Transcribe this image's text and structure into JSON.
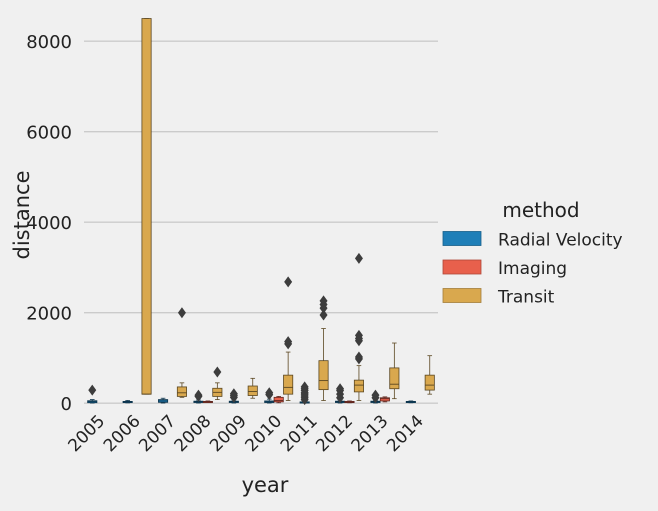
{
  "chart_data": {
    "type": "box",
    "xlabel": "year",
    "ylabel": "distance",
    "ylim": [
      -150,
      8600
    ],
    "yticks": [
      0,
      2000,
      4000,
      6000,
      8000
    ],
    "grid": "horizontal",
    "legend": {
      "title": "method",
      "placement": "right"
    },
    "categories": [
      "2005",
      "2006",
      "2007",
      "2008",
      "2009",
      "2010",
      "2011",
      "2012",
      "2013",
      "2014"
    ],
    "series": [
      {
        "name": "Radial Velocity",
        "color": "#1f7fb8",
        "boxes": [
          {
            "year": "2005",
            "whislo": 5,
            "q1": 12,
            "med": 35,
            "q3": 55,
            "whishi": 80,
            "fliers": [
              290
            ]
          },
          {
            "year": "2006",
            "whislo": 8,
            "q1": 15,
            "med": 30,
            "q3": 40,
            "whishi": 60,
            "fliers": []
          },
          {
            "year": "2007",
            "whislo": 5,
            "q1": 20,
            "med": 50,
            "q3": 80,
            "whishi": 110,
            "fliers": []
          },
          {
            "year": "2008",
            "whislo": 5,
            "q1": 15,
            "med": 30,
            "q3": 45,
            "whishi": 70,
            "fliers": [
              150,
              180
            ]
          },
          {
            "year": "2009",
            "whislo": 5,
            "q1": 15,
            "med": 30,
            "q3": 45,
            "whishi": 70,
            "fliers": [
              130,
              170,
              210
            ]
          },
          {
            "year": "2010",
            "whislo": 5,
            "q1": 15,
            "med": 30,
            "q3": 50,
            "whishi": 90,
            "fliers": [
              190,
              230
            ]
          },
          {
            "year": "2011",
            "whislo": 3,
            "q1": 10,
            "med": 20,
            "q3": 30,
            "whishi": 45,
            "fliers": [
              80,
              120,
              160,
              200,
              230,
              280,
              320,
              360
            ]
          },
          {
            "year": "2012",
            "whislo": 5,
            "q1": 15,
            "med": 30,
            "q3": 45,
            "whishi": 70,
            "fliers": [
              120,
              200,
              280,
              320
            ]
          },
          {
            "year": "2013",
            "whislo": 5,
            "q1": 15,
            "med": 30,
            "q3": 45,
            "whishi": 60,
            "fliers": [
              120,
              180
            ]
          },
          {
            "year": "2014",
            "whislo": 10,
            "q1": 20,
            "med": 30,
            "q3": 40,
            "whishi": 50,
            "fliers": []
          }
        ]
      },
      {
        "name": "Imaging",
        "color": "#e8604c",
        "boxes": [
          {
            "year": "2008",
            "whislo": 20,
            "q1": 25,
            "med": 30,
            "q3": 40,
            "whishi": 50,
            "fliers": []
          },
          {
            "year": "2010",
            "whislo": 10,
            "q1": 30,
            "med": 60,
            "q3": 130,
            "whishi": 150,
            "fliers": []
          },
          {
            "year": "2012",
            "whislo": 10,
            "q1": 15,
            "med": 25,
            "q3": 40,
            "whishi": 50,
            "fliers": []
          },
          {
            "year": "2013",
            "whislo": 30,
            "q1": 50,
            "med": 100,
            "q3": 120,
            "whishi": 140,
            "fliers": []
          }
        ]
      },
      {
        "name": "Transit",
        "color": "#d9a84e",
        "boxes": [
          {
            "year": "2006",
            "whislo": 200,
            "q1": 200,
            "med": 200,
            "q3": 8500,
            "whishi": 8500,
            "fliers": []
          },
          {
            "year": "2007",
            "whislo": 130,
            "q1": 150,
            "med": 230,
            "q3": 360,
            "whishi": 450,
            "fliers": [
              2000
            ]
          },
          {
            "year": "2008",
            "whislo": 80,
            "q1": 150,
            "med": 240,
            "q3": 330,
            "whishi": 450,
            "fliers": [
              690
            ]
          },
          {
            "year": "2009",
            "whislo": 110,
            "q1": 170,
            "med": 260,
            "q3": 380,
            "whishi": 550,
            "fliers": []
          },
          {
            "year": "2010",
            "whislo": 60,
            "q1": 200,
            "med": 350,
            "q3": 620,
            "whishi": 1130,
            "fliers": [
              1310,
              1360,
              2680
            ]
          },
          {
            "year": "2011",
            "whislo": 60,
            "q1": 300,
            "med": 500,
            "q3": 940,
            "whishi": 1650,
            "fliers": [
              1950,
              2100,
              2180,
              2260
            ]
          },
          {
            "year": "2012",
            "whislo": 60,
            "q1": 250,
            "med": 400,
            "q3": 510,
            "whishi": 830,
            "fliers": [
              980,
              1020,
              1380,
              1430,
              1500,
              3200
            ]
          },
          {
            "year": "2013",
            "whislo": 100,
            "q1": 320,
            "med": 420,
            "q3": 780,
            "whishi": 1330,
            "fliers": []
          },
          {
            "year": "2014",
            "whislo": 200,
            "q1": 290,
            "med": 400,
            "q3": 620,
            "whishi": 1050,
            "fliers": []
          }
        ]
      }
    ]
  }
}
